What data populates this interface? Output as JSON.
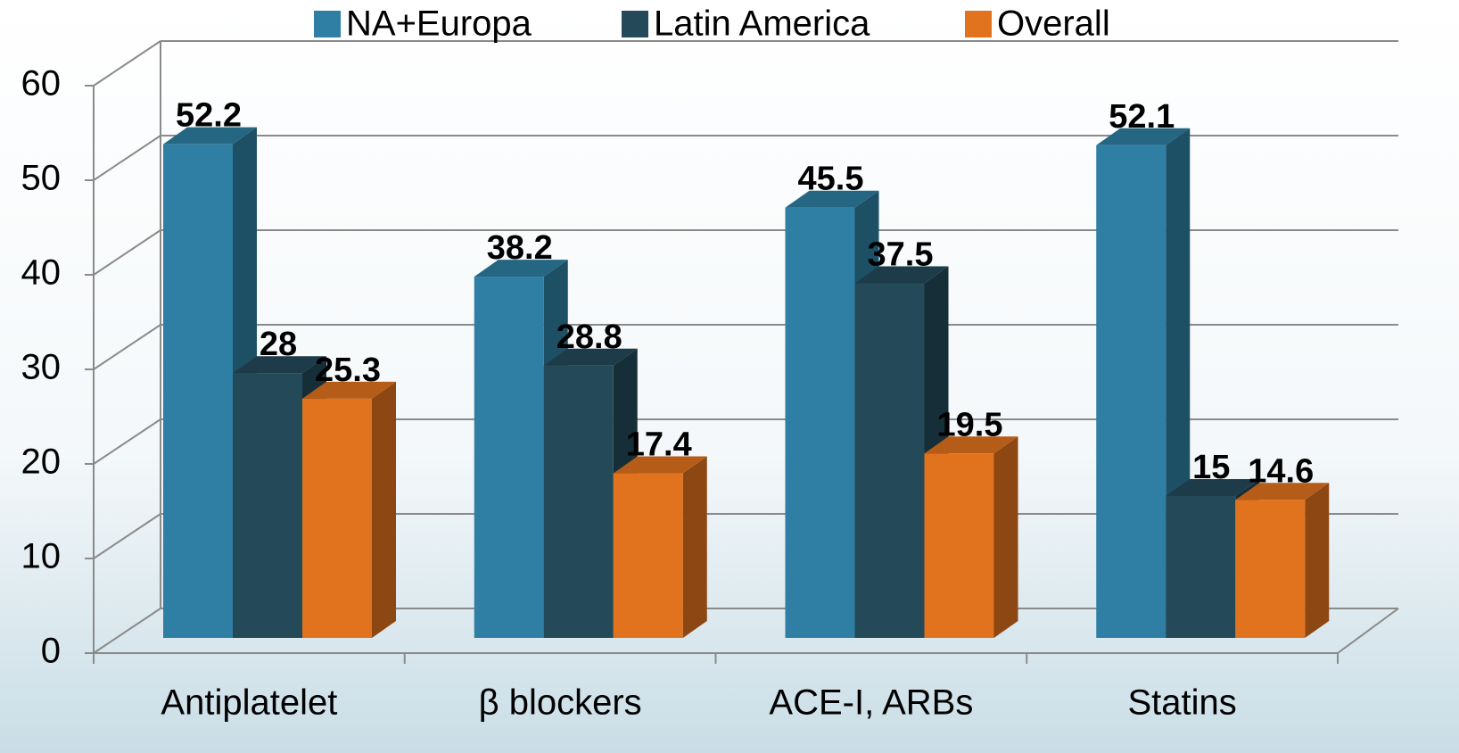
{
  "chart_data": {
    "type": "bar3d",
    "categories": [
      "Antiplatelet",
      "β blockers",
      "ACE-I, ARBs",
      "Statins"
    ],
    "series": [
      {
        "name": "NA+Europa",
        "color": "#2e7fa3",
        "values": [
          52.2,
          38.2,
          45.5,
          52.1
        ]
      },
      {
        "name": "Latin America",
        "color": "#244a5a",
        "values": [
          28,
          28.8,
          37.5,
          15
        ]
      },
      {
        "name": "Overall",
        "color": "#e2731e",
        "values": [
          25.3,
          17.4,
          19.5,
          14.6
        ]
      }
    ],
    "ylim": [
      0,
      60
    ],
    "yticks": [
      0,
      10,
      20,
      30,
      40,
      50,
      60
    ],
    "grid": true,
    "legend": "top"
  }
}
